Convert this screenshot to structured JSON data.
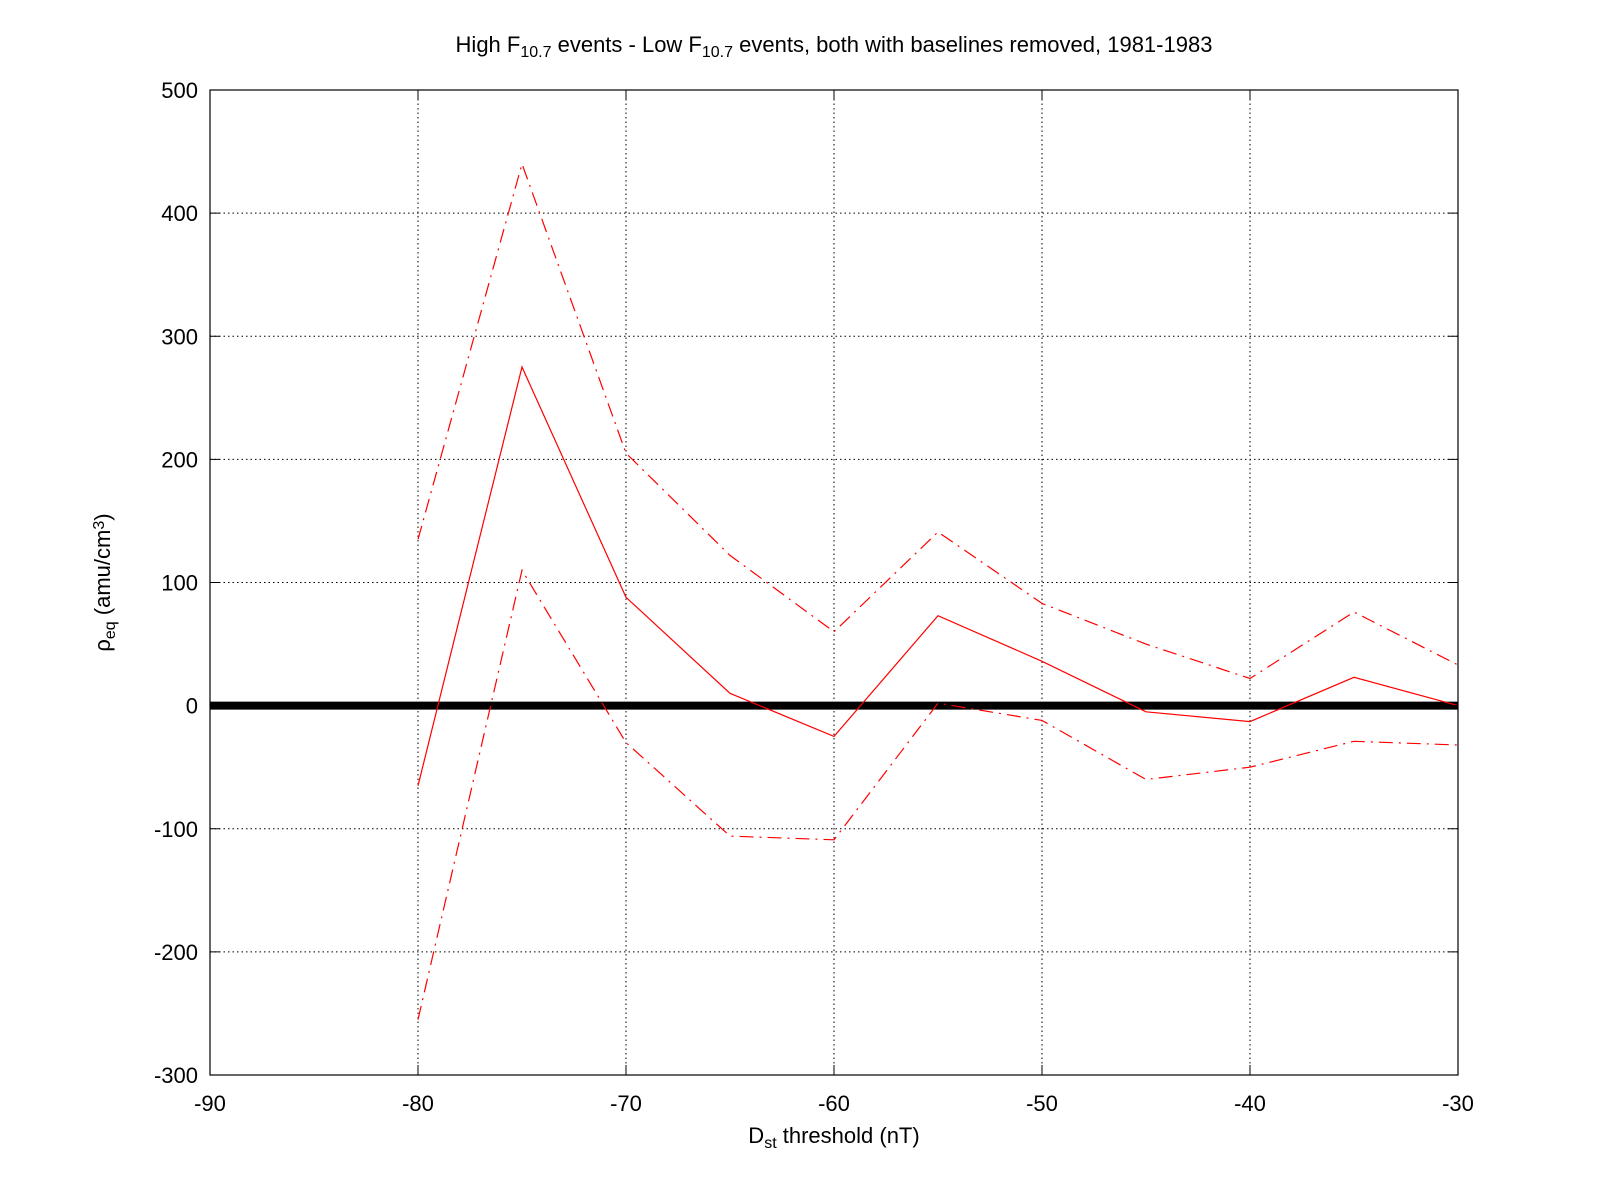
{
  "chart_data": {
    "type": "line",
    "title": {
      "parts": [
        {
          "text": "High F"
        },
        {
          "text": "10.7",
          "sub": true
        },
        {
          "text": " events - Low F"
        },
        {
          "text": "10.7",
          "sub": true
        },
        {
          "text": " events, both with baselines removed, 1981-1983"
        }
      ]
    },
    "xlabel": {
      "parts": [
        {
          "text": "D"
        },
        {
          "text": "st",
          "sub": true
        },
        {
          "text": " threshold (nT)"
        }
      ]
    },
    "ylabel": {
      "parts": [
        {
          "text": "ρ"
        },
        {
          "text": "eq",
          "sub": true
        },
        {
          "text": " (amu/cm"
        },
        {
          "text": "3",
          "sup": true
        },
        {
          "text": ")"
        }
      ]
    },
    "xlim": [
      -90,
      -30
    ],
    "ylim": [
      -300,
      500
    ],
    "xticks": [
      -90,
      -80,
      -70,
      -60,
      -50,
      -40,
      -30
    ],
    "yticks": [
      -300,
      -200,
      -100,
      0,
      100,
      200,
      300,
      400,
      500
    ],
    "grid": true,
    "x": [
      -80,
      -75,
      -70,
      -65,
      -60,
      -55,
      -50,
      -45,
      -40,
      -35,
      -30
    ],
    "series": [
      {
        "values": [
          135,
          440,
          205,
          122,
          60,
          141,
          83,
          50,
          22,
          76,
          33
        ],
        "color": "#ff0000",
        "style": "dashdot"
      },
      {
        "values": [
          -65,
          275,
          88,
          10,
          -25,
          73,
          36,
          -5,
          -13,
          23,
          0
        ],
        "color": "#ff0000",
        "style": "solid"
      },
      {
        "values": [
          -255,
          110,
          -30,
          -106,
          -109,
          2,
          -12,
          -60,
          -50,
          -29,
          -32
        ],
        "color": "#ff0000",
        "style": "dashdot"
      }
    ],
    "zero_line": {
      "y": 0,
      "color": "#000000"
    }
  }
}
